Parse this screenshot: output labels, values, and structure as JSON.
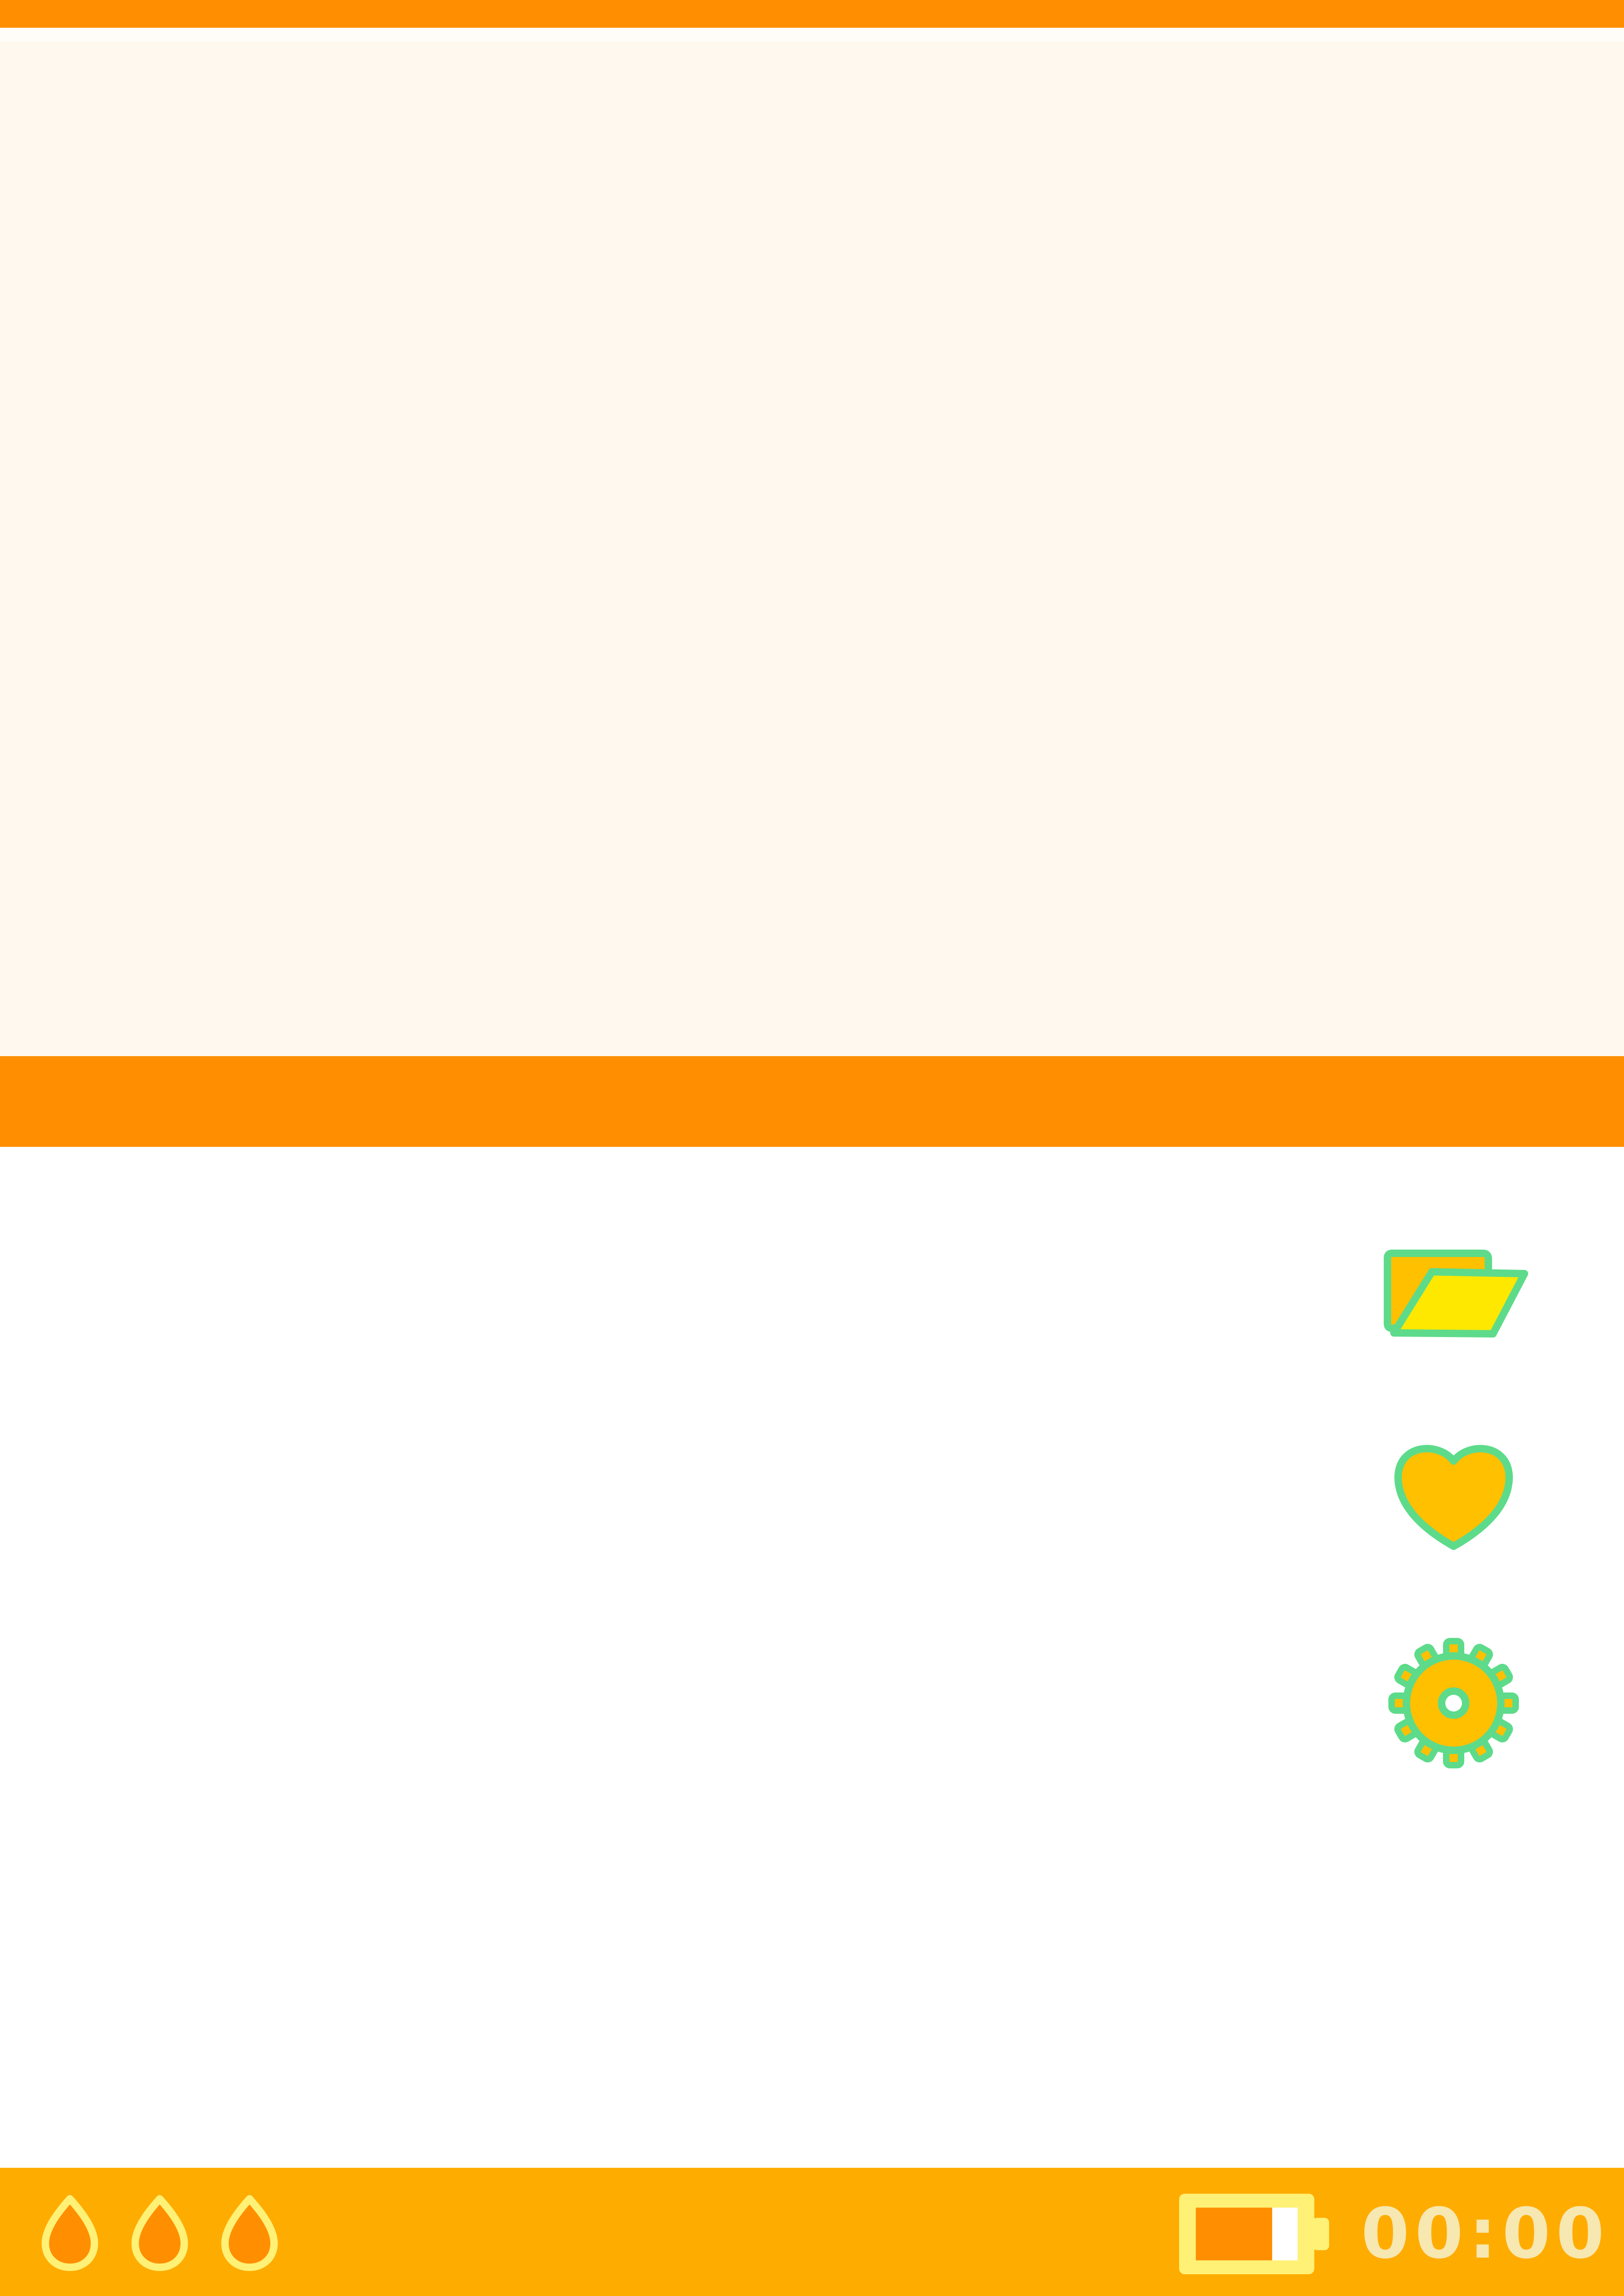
{
  "colors": {
    "top_strip": "#ff8f00",
    "preview_bg": "#fff8ee",
    "preview_bar": "#ff8f00",
    "status_bar": "#ffac00",
    "icon_outline": "#5ddb8a",
    "icon_fill": "#ffc000",
    "folder_front": "#ffe800",
    "drop_outline": "#fff176",
    "drop_fill": "#ff8f00",
    "battery_outline": "#fff176",
    "battery_level": "#ff8f00",
    "battery_empty": "#ffffff",
    "clock_text": "#f7e7b0"
  },
  "side_tools": [
    {
      "name": "open-folder-button",
      "icon": "folder-open-icon"
    },
    {
      "name": "favorite-button",
      "icon": "heart-icon"
    },
    {
      "name": "settings-button",
      "icon": "gear-icon"
    }
  ],
  "status_bar": {
    "drops": [
      {
        "icon": "water-drop-icon"
      },
      {
        "icon": "water-drop-icon"
      },
      {
        "icon": "water-drop-icon"
      }
    ],
    "battery": {
      "icon": "battery-icon",
      "level_fraction": 0.75
    },
    "clock": "00:00"
  }
}
